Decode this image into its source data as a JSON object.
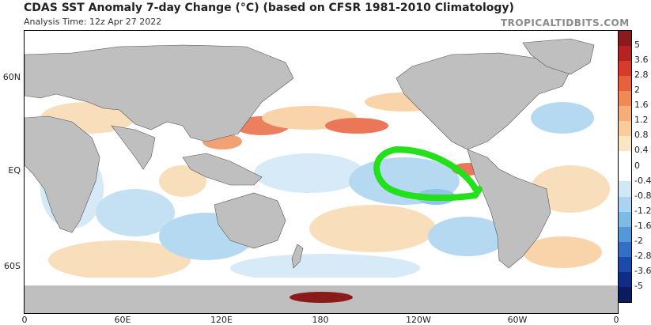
{
  "header": {
    "title": "CDAS SST Anomaly 7-day Change (°C) (based on CFSR 1981-2010 Climatology)",
    "subtitle": "Analysis Time: 12z Apr 27 2022",
    "brand": "TROPICALTIDBITS.COM"
  },
  "map": {
    "lat_labels": [
      "60N",
      "EQ",
      "60S"
    ],
    "lon_labels": [
      "0",
      "60E",
      "120E",
      "180",
      "120W",
      "60W",
      "0"
    ],
    "annotation": "green-hand-drawn-loop-east-pacific"
  },
  "colorbar": {
    "labels": [
      "5",
      "3.6",
      "2.8",
      "2",
      "1.6",
      "1.2",
      "0.8",
      "0.4",
      "0",
      "-0.4",
      "-0.8",
      "-1.2",
      "-1.6",
      "-2",
      "-2.8",
      "-3.6",
      "-5"
    ],
    "colors": [
      "#8b1a1a",
      "#b52222",
      "#d63b2c",
      "#e8603c",
      "#f08a55",
      "#f5ae7a",
      "#f8cc9c",
      "#fbe6c4",
      "#ffffff",
      "#ffffff",
      "#cfe8f6",
      "#a9d3ef",
      "#7fb9e6",
      "#5598d8",
      "#346fc6",
      "#1c4aa8",
      "#102c86",
      "#0a1c60"
    ]
  }
}
